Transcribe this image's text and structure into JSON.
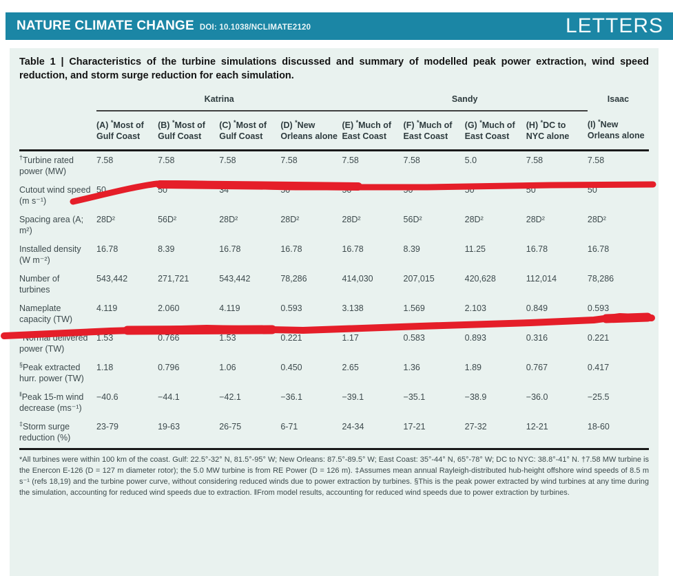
{
  "masthead": {
    "journal": "NATURE CLIMATE CHANGE",
    "doi": "DOI: 10.1038/NCLIMATE2120",
    "section": "LETTERS"
  },
  "table": {
    "title": "Table 1 | Characteristics of the turbine simulations discussed and summary of modelled peak power extraction, wind speed reduction, and storm surge reduction for each simulation.",
    "groups": [
      {
        "label": "Katrina",
        "span": 4,
        "underline": true
      },
      {
        "label": "Sandy",
        "span": 4,
        "underline": true
      },
      {
        "label": "Isaac",
        "span": 1,
        "underline": false
      }
    ],
    "columns": [
      {
        "tag": "(A)",
        "sup": "*",
        "name": "Most of Gulf Coast"
      },
      {
        "tag": "(B)",
        "sup": "*",
        "name": "Most of Gulf Coast"
      },
      {
        "tag": "(C)",
        "sup": "*",
        "name": "Most of Gulf Coast"
      },
      {
        "tag": "(D)",
        "sup": "*",
        "name": "New Orleans alone"
      },
      {
        "tag": "(E)",
        "sup": "*",
        "name": "Much of East Coast"
      },
      {
        "tag": "(F)",
        "sup": "*",
        "name": "Much of East Coast"
      },
      {
        "tag": "(G)",
        "sup": "*",
        "name": "Much of East Coast"
      },
      {
        "tag": "(H)",
        "sup": "*",
        "name": "DC to NYC alone"
      },
      {
        "tag": "(I)",
        "sup": "*",
        "name": "New Orleans alone"
      }
    ],
    "rows": [
      {
        "prefix": "†",
        "label": "Turbine rated power (MW)",
        "values": [
          "7.58",
          "7.58",
          "7.58",
          "7.58",
          "7.58",
          "7.58",
          "5.0",
          "7.58",
          "7.58"
        ]
      },
      {
        "prefix": "",
        "label": "Cutout wind speed (m s⁻¹)",
        "values": [
          "50",
          "50",
          "34",
          "50",
          "50",
          "50",
          "50",
          "50",
          "50"
        ]
      },
      {
        "prefix": "",
        "label": "Spacing area (A; m²)",
        "values": [
          "28D²",
          "56D²",
          "28D²",
          "28D²",
          "28D²",
          "56D²",
          "28D²",
          "28D²",
          "28D²"
        ]
      },
      {
        "prefix": "",
        "label": "Installed density (W m⁻²)",
        "values": [
          "16.78",
          "8.39",
          "16.78",
          "16.78",
          "16.78",
          "8.39",
          "11.25",
          "16.78",
          "16.78"
        ]
      },
      {
        "prefix": "",
        "label": "Number of turbines",
        "values": [
          "543,442",
          "271,721",
          "543,442",
          "78,286",
          "414,030",
          "207,015",
          "420,628",
          "112,014",
          "78,286"
        ]
      },
      {
        "prefix": "",
        "label": "Nameplate capacity (TW)",
        "values": [
          "4.119",
          "2.060",
          "4.119",
          "0.593",
          "3.138",
          "1.569",
          "2.103",
          "0.849",
          "0.593"
        ]
      },
      {
        "prefix": "‡",
        "label": "Normal delivered power (TW)",
        "values": [
          "1.53",
          "0.766",
          "1.53",
          "0.221",
          "1.17",
          "0.583",
          "0.893",
          "0.316",
          "0.221"
        ]
      },
      {
        "prefix": "§",
        "label": "Peak extracted hurr. power (TW)",
        "values": [
          "1.18",
          "0.796",
          "1.06",
          "0.450",
          "2.65",
          "1.36",
          "1.89",
          "0.767",
          "0.417"
        ]
      },
      {
        "prefix": "‖",
        "label": "Peak 15-m wind decrease (ms⁻¹)",
        "values": [
          "−40.6",
          "−44.1",
          "−42.1",
          "−36.1",
          "−39.1",
          "−35.1",
          "−38.9",
          "−36.0",
          "−25.5"
        ]
      },
      {
        "prefix": "‡",
        "label": "Storm surge reduction (%)",
        "values": [
          "23-79",
          "19-63",
          "26-75",
          "6-71",
          "24-34",
          "17-21",
          "27-32",
          "12-21",
          "18-60"
        ]
      }
    ],
    "footnote": "*All turbines were within 100 km of the coast. Gulf: 22.5°-32° N, 81.5°-95° W; New Orleans: 87.5°-89.5° W; East Coast: 35°-44° N, 65°-78° W; DC to NYC: 38.8°-41° N. †7.58 MW turbine is the Enercon E-126 (D = 127 m diameter rotor); the 5.0 MW turbine is from RE Power (D = 126 m). ‡Assumes mean annual Rayleigh-distributed hub-height offshore wind speeds of 8.5 m s⁻¹ (refs 18,19) and the turbine power curve, without considering reduced winds due to power extraction by turbines. §This is the peak power extracted by wind turbines at any time during the simulation, accounting for reduced wind speeds due to extraction. ‖From model results, accounting for reduced wind speeds due to power extraction by turbines."
  },
  "annotations": {
    "marker_color": "#e51e29",
    "marker_strokes": [
      "underline-row-turbine-rated-power",
      "underline-row-number-of-turbines"
    ]
  },
  "colors": {
    "masthead_teal": "#1b86a5",
    "table_background": "#e9f2ef",
    "rule_dark": "#1a1a1a"
  }
}
